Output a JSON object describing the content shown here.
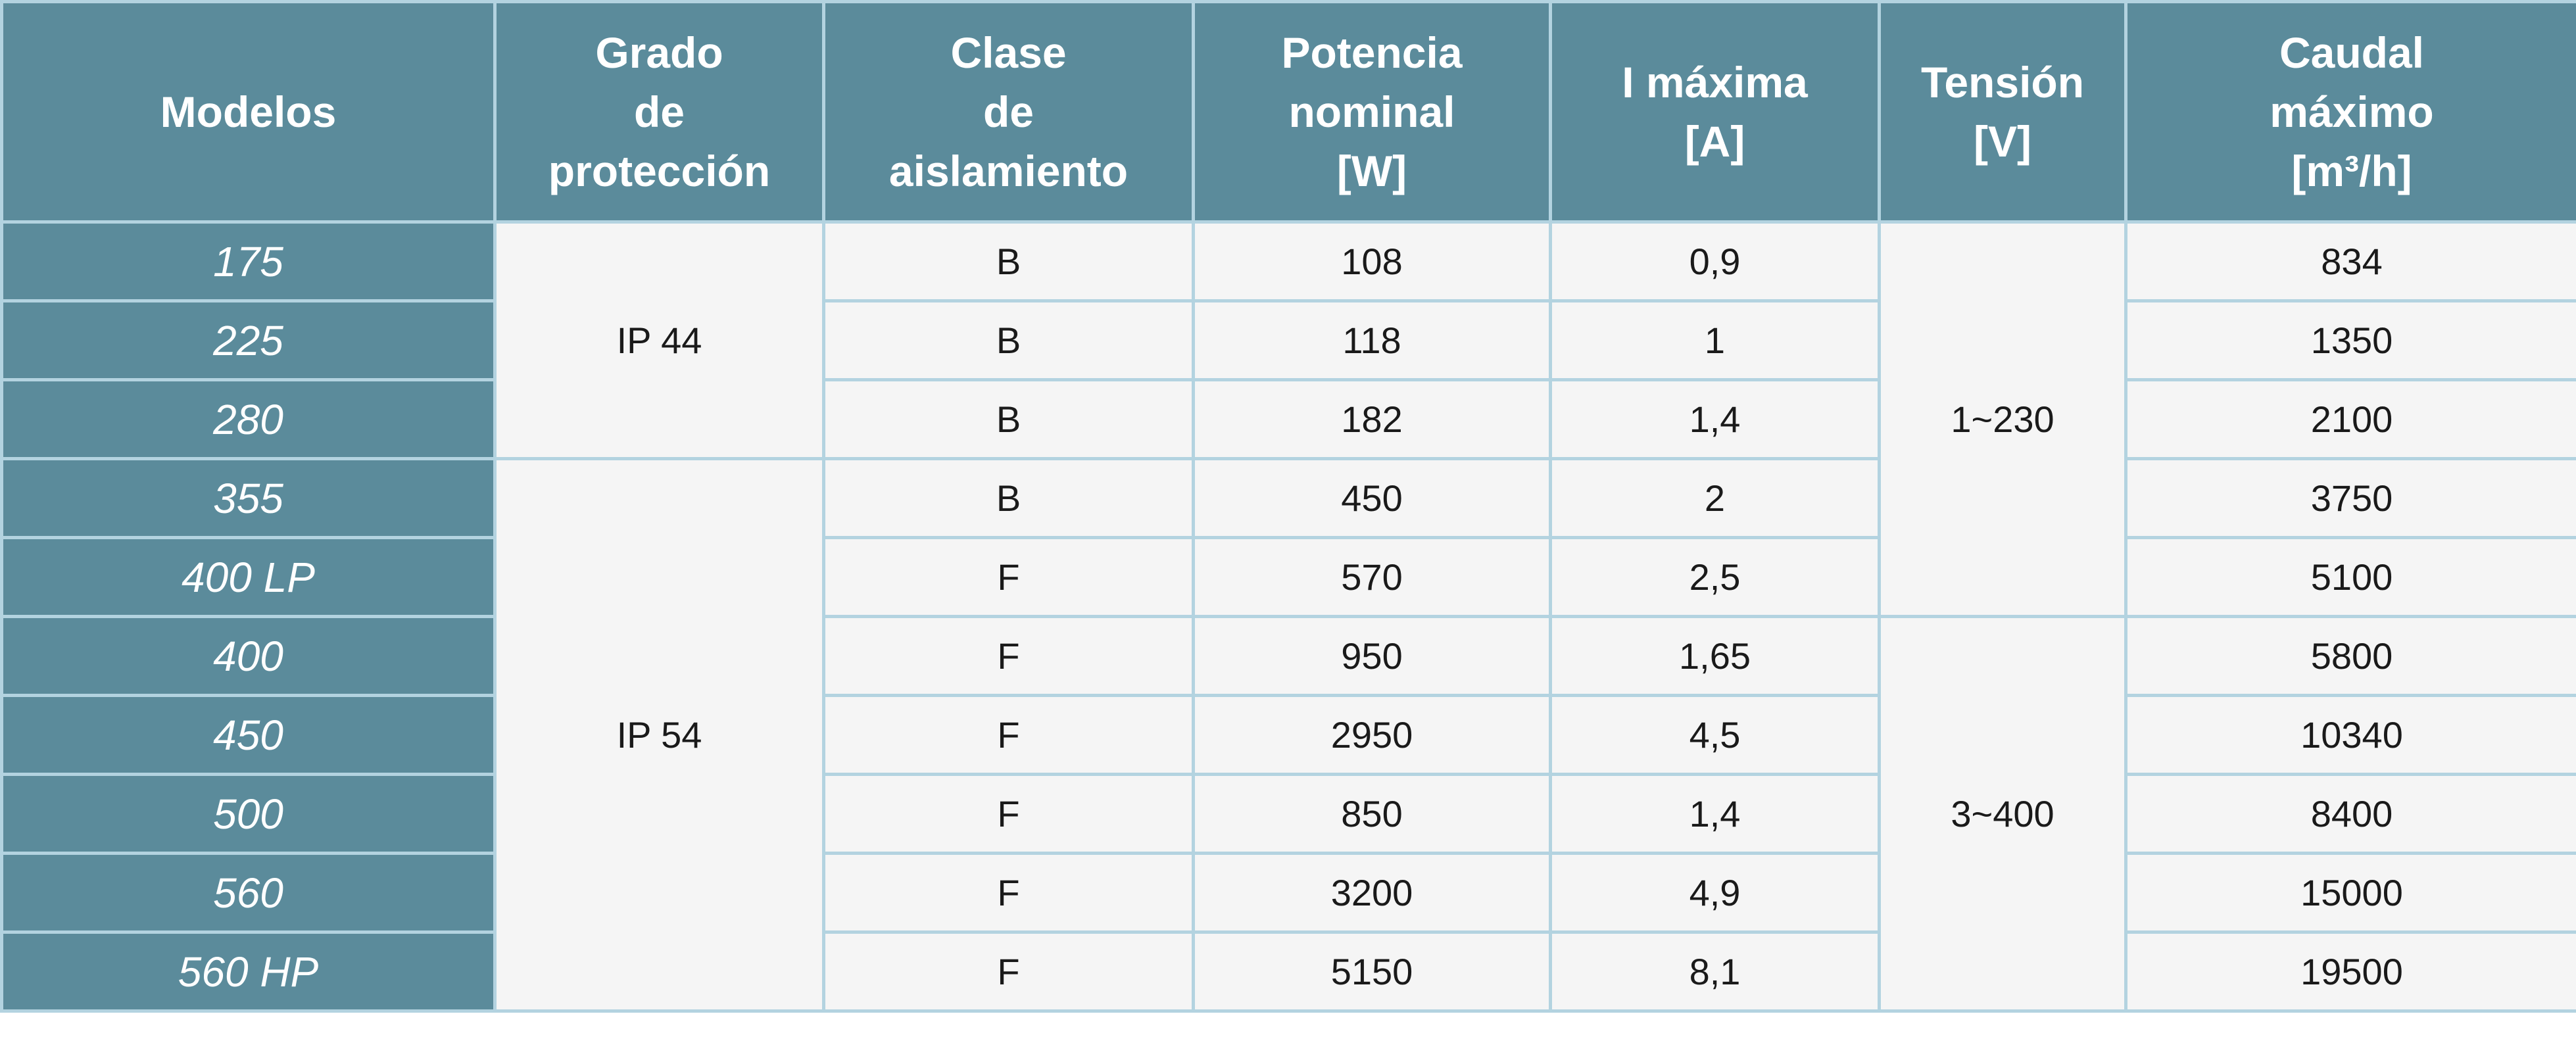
{
  "headers": [
    [
      "Modelos"
    ],
    [
      "Grado",
      "de",
      "protección"
    ],
    [
      "Clase",
      "de",
      "aislamiento"
    ],
    [
      "Potencia",
      "nominal",
      "[W]"
    ],
    [
      "I máxima",
      "[A]"
    ],
    [
      "Tensión",
      "[V]"
    ],
    [
      "Caudal",
      "máximo",
      "[m³/h]"
    ]
  ],
  "grados": [
    "IP 44",
    "IP 54"
  ],
  "tensiones": [
    "1~230",
    "3~400"
  ],
  "rows": [
    {
      "modelo": "175",
      "clase": "B",
      "potencia": "108",
      "imax": "0,9",
      "caudal": "834"
    },
    {
      "modelo": "225",
      "clase": "B",
      "potencia": "118",
      "imax": "1",
      "caudal": "1350"
    },
    {
      "modelo": "280",
      "clase": "B",
      "potencia": "182",
      "imax": "1,4",
      "caudal": "2100"
    },
    {
      "modelo": "355",
      "clase": "B",
      "potencia": "450",
      "imax": "2",
      "caudal": "3750"
    },
    {
      "modelo": "400 LP",
      "clase": "F",
      "potencia": "570",
      "imax": "2,5",
      "caudal": "5100"
    },
    {
      "modelo": "400",
      "clase": "F",
      "potencia": "950",
      "imax": "1,65",
      "caudal": "5800"
    },
    {
      "modelo": "450",
      "clase": "F",
      "potencia": "2950",
      "imax": "4,5",
      "caudal": "10340"
    },
    {
      "modelo": "500",
      "clase": "F",
      "potencia": "850",
      "imax": "1,4",
      "caudal": "8400"
    },
    {
      "modelo": "560",
      "clase": "F",
      "potencia": "3200",
      "imax": "4,9",
      "caudal": "15000"
    },
    {
      "modelo": "560 HP",
      "clase": "F",
      "potencia": "5150",
      "imax": "8,1",
      "caudal": "19500"
    }
  ]
}
